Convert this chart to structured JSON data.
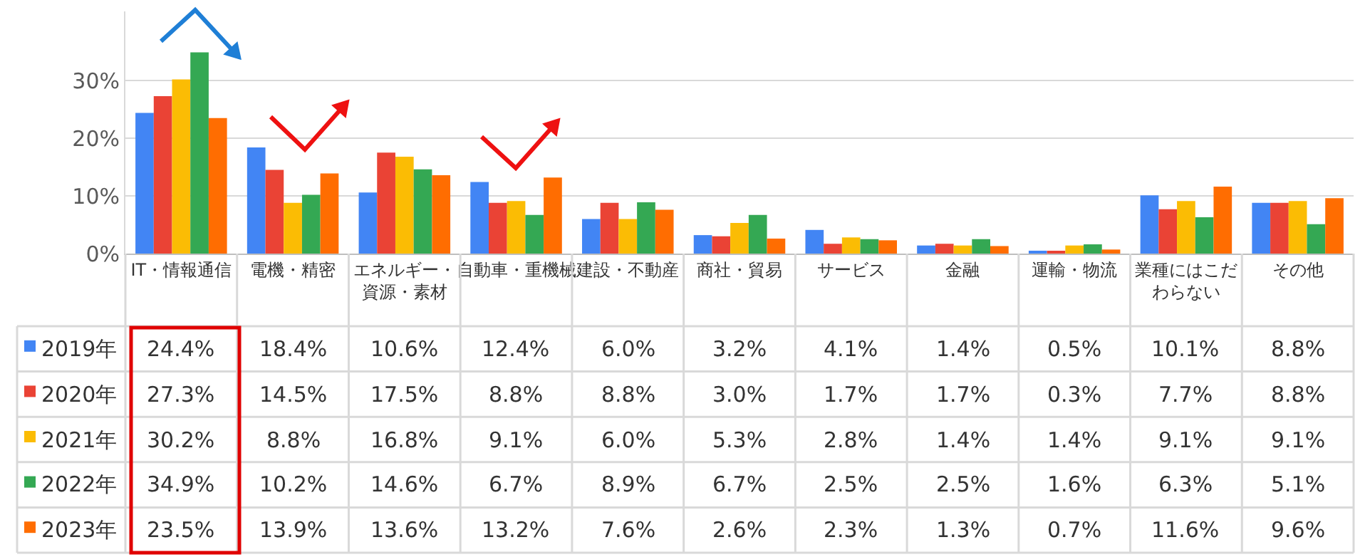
{
  "chart_data": {
    "type": "bar",
    "categories": [
      "IT・情報通信",
      "電機・精密",
      "エネルギー・資源・素材",
      "自動車・重機械",
      "建設・不動産",
      "商社・貿易",
      "サービス",
      "金融",
      "運輸・物流",
      "業種にはこだわらない",
      "その他"
    ],
    "series": [
      {
        "name": "2019年",
        "color": "#4285f4",
        "values": [
          24.4,
          18.4,
          10.6,
          12.4,
          6.0,
          3.2,
          4.1,
          1.4,
          0.5,
          10.1,
          8.8
        ],
        "value_labels": [
          "24.4%",
          "18.4%",
          "10.6%",
          "12.4%",
          "6.0%",
          "3.2%",
          "4.1%",
          "1.4%",
          "0.5%",
          "10.1%",
          "8.8%"
        ]
      },
      {
        "name": "2020年",
        "color": "#ea4335",
        "values": [
          27.3,
          14.5,
          17.5,
          8.8,
          8.8,
          3.0,
          1.7,
          1.7,
          0.3,
          7.7,
          8.8
        ],
        "value_labels": [
          "27.3%",
          "14.5%",
          "17.5%",
          "8.8%",
          "8.8%",
          "3.0%",
          "1.7%",
          "1.7%",
          "0.3%",
          "7.7%",
          "8.8%"
        ]
      },
      {
        "name": "2021年",
        "color": "#fbbc04",
        "values": [
          30.2,
          8.8,
          16.8,
          9.1,
          6.0,
          5.3,
          2.8,
          1.4,
          1.4,
          9.1,
          9.1
        ],
        "value_labels": [
          "30.2%",
          "8.8%",
          "16.8%",
          "9.1%",
          "6.0%",
          "5.3%",
          "2.8%",
          "1.4%",
          "1.4%",
          "9.1%",
          "9.1%"
        ]
      },
      {
        "name": "2022年",
        "color": "#34a853",
        "values": [
          34.9,
          10.2,
          14.6,
          6.7,
          8.9,
          6.7,
          2.5,
          2.5,
          1.6,
          6.3,
          5.1
        ],
        "value_labels": [
          "34.9%",
          "10.2%",
          "14.6%",
          "6.7%",
          "8.9%",
          "6.7%",
          "2.5%",
          "2.5%",
          "1.6%",
          "6.3%",
          "5.1%"
        ]
      },
      {
        "name": "2023年",
        "color": "#ff6d01",
        "values": [
          23.5,
          13.9,
          13.6,
          13.2,
          7.6,
          2.6,
          2.3,
          1.3,
          0.7,
          11.6,
          9.6
        ],
        "value_labels": [
          "23.5%",
          "13.9%",
          "13.6%",
          "13.2%",
          "7.6%",
          "2.6%",
          "2.3%",
          "1.3%",
          "0.7%",
          "11.6%",
          "9.6%"
        ]
      }
    ],
    "ylim": [
      0,
      42
    ],
    "yticks": [
      {
        "value": 0,
        "label": "0%"
      },
      {
        "value": 10,
        "label": "10%"
      },
      {
        "value": 20,
        "label": "20%"
      },
      {
        "value": 30,
        "label": "30%"
      }
    ],
    "grid": "y",
    "legend": "bottom left"
  }
}
